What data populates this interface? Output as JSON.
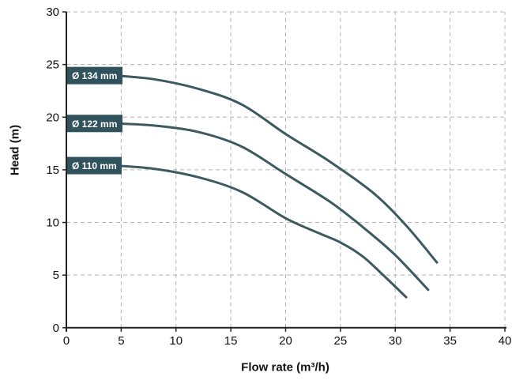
{
  "chart_data": {
    "type": "line",
    "title": "",
    "xlabel": "Flow rate (m³/h)",
    "ylabel": "Head (m)",
    "xlim": [
      0,
      40
    ],
    "ylim": [
      0,
      30
    ],
    "xticks": [
      0,
      5,
      10,
      15,
      20,
      25,
      30,
      35,
      40
    ],
    "yticks": [
      0,
      5,
      10,
      15,
      20,
      25,
      30
    ],
    "grid": "dashed",
    "legend_position": "labels-on-curves",
    "series": [
      {
        "name": "Ø 134 mm",
        "points": [
          [
            4.5,
            23.95
          ],
          [
            8,
            23.6
          ],
          [
            12,
            22.7
          ],
          [
            16,
            21.2
          ],
          [
            20,
            18.4
          ],
          [
            24,
            15.8
          ],
          [
            28,
            12.8
          ],
          [
            31,
            9.7
          ],
          [
            33.8,
            6.2
          ]
        ]
      },
      {
        "name": "Ø 122 mm",
        "points": [
          [
            4.6,
            19.4
          ],
          [
            8,
            19.2
          ],
          [
            12,
            18.6
          ],
          [
            16,
            17.2
          ],
          [
            20,
            14.6
          ],
          [
            24,
            12.0
          ],
          [
            27,
            9.6
          ],
          [
            30,
            6.9
          ],
          [
            33,
            3.6
          ]
        ]
      },
      {
        "name": "Ø 110 mm",
        "points": [
          [
            4.5,
            15.4
          ],
          [
            8,
            15.1
          ],
          [
            12,
            14.3
          ],
          [
            16,
            12.9
          ],
          [
            20,
            10.4
          ],
          [
            23,
            9.0
          ],
          [
            25,
            8.1
          ],
          [
            27,
            6.8
          ],
          [
            29,
            4.9
          ],
          [
            31,
            2.9
          ]
        ]
      }
    ]
  },
  "colors": {
    "background": "#ffffff",
    "curve": "#3c5a60",
    "label_bg": "#2f525c",
    "label_text": "#ffffff",
    "grid": "#b3b3b3",
    "axis": "#222222",
    "tick_text": "#111111"
  }
}
